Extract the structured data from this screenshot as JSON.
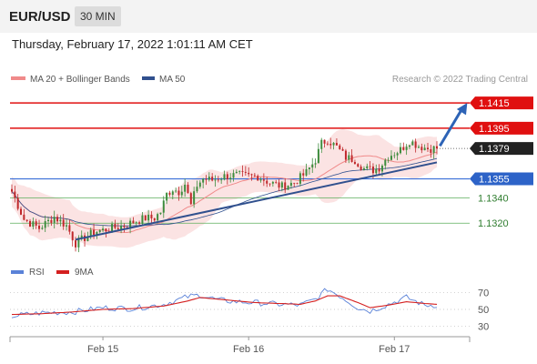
{
  "header": {
    "symbol": "EUR/USD",
    "timeframe": "30 MIN",
    "timestamp": "Thursday, February 17, 2022 1:01:11 AM CET"
  },
  "legend": {
    "ma20_label": "MA 20 + Bollinger Bands",
    "ma50_label": "MA 50",
    "credit": "Research © 2022 Trading Central"
  },
  "rsi_legend": {
    "rsi_label": "RSI",
    "ma_label": "9MA"
  },
  "colors": {
    "resistance": "#e01010",
    "pivot": "#3a6fd8",
    "support": "#5cae5c",
    "up_candle": "#3d8c3d",
    "down_candle": "#c0282b",
    "ma20": "#f08a8a",
    "ma50": "#30508e",
    "bollinger": "#fbe3e3",
    "trendline": "#30508e",
    "arrow": "#2d63b6",
    "rsi": "#5a82d8",
    "rsi_ma": "#d42020"
  },
  "chart_data": [
    {
      "type": "candlestick",
      "ylim": [
        1.1295,
        1.1428
      ],
      "x_ticks": [
        "Feb 15",
        "Feb 16",
        "Feb 17"
      ],
      "levels": [
        {
          "name": "R2",
          "value": 1.1415,
          "label": "1.1415",
          "style": "resistance"
        },
        {
          "name": "R1",
          "value": 1.1395,
          "label": "1.1395",
          "style": "resistance"
        },
        {
          "name": "last",
          "value": 1.1379,
          "label": "1.1379",
          "style": "last"
        },
        {
          "name": "pivot",
          "value": 1.1355,
          "label": "1.1355",
          "style": "pivot"
        },
        {
          "name": "S1",
          "value": 1.134,
          "label": "1.1340",
          "style": "support"
        },
        {
          "name": "S2",
          "value": 1.132,
          "label": "1.1320",
          "style": "support"
        }
      ],
      "anchors": [
        [
          0,
          1.1345
        ],
        [
          4,
          1.1323
        ],
        [
          9,
          1.1316
        ],
        [
          14,
          1.1325
        ],
        [
          18,
          1.1318
        ],
        [
          21,
          1.1304
        ],
        [
          27,
          1.1313
        ],
        [
          33,
          1.1316
        ],
        [
          37,
          1.1318
        ],
        [
          40,
          1.1321
        ],
        [
          44,
          1.1324
        ],
        [
          47,
          1.1324
        ],
        [
          49,
          1.1329
        ],
        [
          51,
          1.1343
        ],
        [
          53,
          1.1347
        ],
        [
          55,
          1.1345
        ],
        [
          57,
          1.1351
        ],
        [
          59,
          1.1334
        ],
        [
          61,
          1.135
        ],
        [
          63,
          1.1355
        ],
        [
          66,
          1.1354
        ],
        [
          70,
          1.1357
        ],
        [
          74,
          1.1358
        ],
        [
          78,
          1.1357
        ],
        [
          81,
          1.1357
        ],
        [
          85,
          1.1352
        ],
        [
          89,
          1.1349
        ],
        [
          93,
          1.1352
        ],
        [
          97,
          1.136
        ],
        [
          100,
          1.137
        ],
        [
          102,
          1.1383
        ],
        [
          104,
          1.1386
        ],
        [
          107,
          1.138
        ],
        [
          110,
          1.1372
        ],
        [
          113,
          1.137
        ],
        [
          116,
          1.1363
        ],
        [
          119,
          1.1362
        ],
        [
          121,
          1.1364
        ],
        [
          124,
          1.1373
        ],
        [
          128,
          1.1378
        ],
        [
          131,
          1.1385
        ],
        [
          134,
          1.1381
        ],
        [
          137,
          1.1379
        ],
        [
          140,
          1.1379
        ]
      ],
      "candle_count": 141,
      "trendline": {
        "from": [
          21,
          1.1307
        ],
        "to": [
          140,
          1.1368
        ]
      },
      "forecast_arrow": {
        "from": [
          141,
          1.1381
        ],
        "to": [
          150,
          1.1415
        ]
      }
    },
    {
      "type": "line",
      "title": "RSI",
      "ylim": [
        20,
        80
      ],
      "y_ticks": [
        70,
        50,
        30
      ],
      "series": [
        {
          "name": "RSI",
          "anchors": [
            [
              0,
              42
            ],
            [
              10,
              46
            ],
            [
              20,
              47
            ],
            [
              30,
              52
            ],
            [
              40,
              51
            ],
            [
              50,
              56
            ],
            [
              58,
              65
            ],
            [
              62,
              67
            ],
            [
              68,
              61
            ],
            [
              74,
              59
            ],
            [
              80,
              58
            ],
            [
              88,
              56
            ],
            [
              95,
              55
            ],
            [
              100,
              62
            ],
            [
              104,
              74
            ],
            [
              108,
              66
            ],
            [
              114,
              52
            ],
            [
              118,
              48
            ],
            [
              124,
              56
            ],
            [
              130,
              64
            ],
            [
              136,
              55
            ],
            [
              140,
              55
            ]
          ]
        },
        {
          "name": "9MA",
          "anchors": [
            [
              0,
              44
            ],
            [
              10,
              45
            ],
            [
              20,
              47
            ],
            [
              30,
              50
            ],
            [
              40,
              51
            ],
            [
              50,
              54
            ],
            [
              58,
              60
            ],
            [
              62,
              64
            ],
            [
              68,
              62
            ],
            [
              74,
              60
            ],
            [
              80,
              58
            ],
            [
              88,
              57
            ],
            [
              95,
              56
            ],
            [
              100,
              60
            ],
            [
              104,
              66
            ],
            [
              108,
              66
            ],
            [
              114,
              58
            ],
            [
              118,
              52
            ],
            [
              124,
              55
            ],
            [
              130,
              59
            ],
            [
              136,
              57
            ],
            [
              140,
              56
            ]
          ]
        }
      ]
    }
  ]
}
